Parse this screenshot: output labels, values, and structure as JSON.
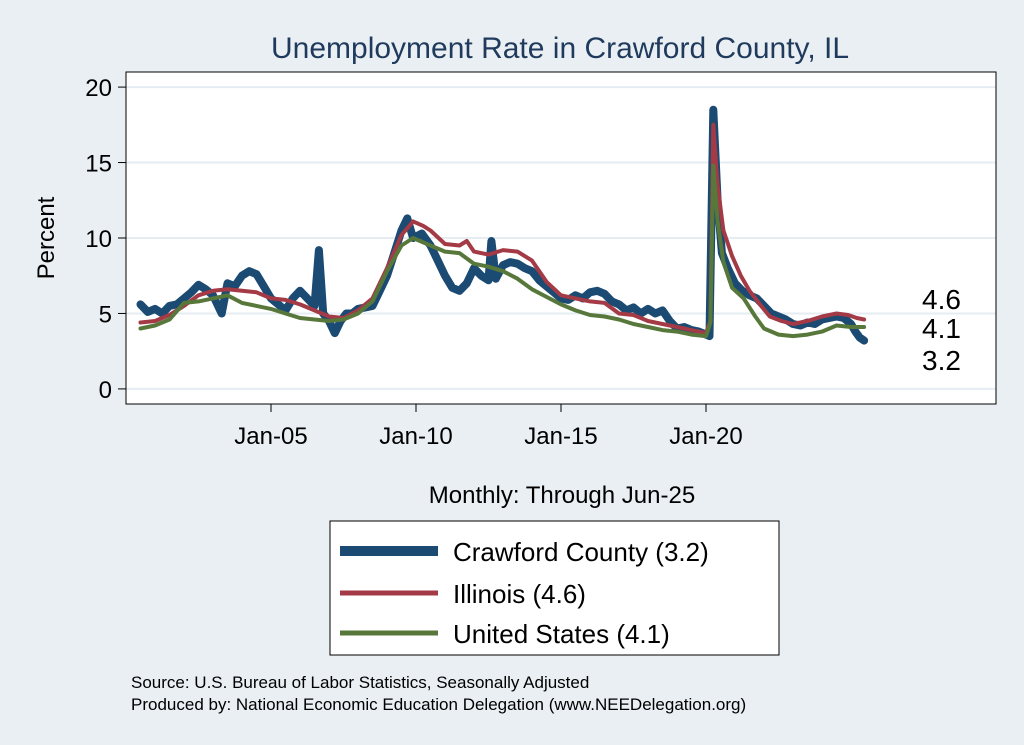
{
  "chart_data": {
    "type": "line",
    "title": "Unemployment Rate in Crawford  County, IL",
    "xlabel": "Monthly: Through Jun-25",
    "ylabel": "Percent",
    "xlim": [
      2000.0,
      2030.0
    ],
    "ylim": [
      -1.0,
      21.0
    ],
    "x_ticks": [
      {
        "value": 2005.0,
        "label": "Jan-05"
      },
      {
        "value": 2010.0,
        "label": "Jan-10"
      },
      {
        "value": 2015.0,
        "label": "Jan-15"
      },
      {
        "value": 2020.0,
        "label": "Jan-20"
      }
    ],
    "y_ticks": [
      0,
      5,
      10,
      15,
      20
    ],
    "grid": "horizontal",
    "end_labels": [
      "4.6",
      "4.1",
      "3.2"
    ],
    "series": [
      {
        "name": "Crawford  County (3.2)",
        "color": "#1b4a73",
        "width": 8,
        "points": [
          [
            2000.5,
            5.6
          ],
          [
            2000.75,
            5.1
          ],
          [
            2001.0,
            5.3
          ],
          [
            2001.25,
            5.0
          ],
          [
            2001.5,
            5.5
          ],
          [
            2001.75,
            5.6
          ],
          [
            2002.0,
            6.0
          ],
          [
            2002.25,
            6.4
          ],
          [
            2002.5,
            6.9
          ],
          [
            2002.75,
            6.6
          ],
          [
            2003.0,
            6.2
          ],
          [
            2003.3,
            5.0
          ],
          [
            2003.5,
            7.0
          ],
          [
            2003.75,
            6.8
          ],
          [
            2004.0,
            7.5
          ],
          [
            2004.25,
            7.8
          ],
          [
            2004.5,
            7.6
          ],
          [
            2004.75,
            6.8
          ],
          [
            2005.0,
            6.0
          ],
          [
            2005.25,
            5.6
          ],
          [
            2005.5,
            5.2
          ],
          [
            2005.75,
            6.0
          ],
          [
            2006.0,
            6.5
          ],
          [
            2006.25,
            6.0
          ],
          [
            2006.5,
            5.5
          ],
          [
            2006.65,
            9.2
          ],
          [
            2006.8,
            5.0
          ],
          [
            2007.0,
            4.5
          ],
          [
            2007.2,
            3.7
          ],
          [
            2007.4,
            4.5
          ],
          [
            2007.6,
            5.0
          ],
          [
            2007.8,
            5.0
          ],
          [
            2008.0,
            5.3
          ],
          [
            2008.25,
            5.4
          ],
          [
            2008.5,
            5.5
          ],
          [
            2008.75,
            6.5
          ],
          [
            2009.0,
            7.5
          ],
          [
            2009.25,
            9.0
          ],
          [
            2009.5,
            10.5
          ],
          [
            2009.7,
            11.3
          ],
          [
            2009.9,
            10.0
          ],
          [
            2010.2,
            10.3
          ],
          [
            2010.5,
            9.5
          ],
          [
            2010.75,
            8.5
          ],
          [
            2011.0,
            7.5
          ],
          [
            2011.25,
            6.7
          ],
          [
            2011.5,
            6.5
          ],
          [
            2011.75,
            7.0
          ],
          [
            2012.0,
            8.0
          ],
          [
            2012.25,
            7.5
          ],
          [
            2012.5,
            7.2
          ],
          [
            2012.6,
            9.8
          ],
          [
            2012.75,
            7.3
          ],
          [
            2013.0,
            8.2
          ],
          [
            2013.25,
            8.4
          ],
          [
            2013.5,
            8.3
          ],
          [
            2013.75,
            8.0
          ],
          [
            2014.0,
            7.8
          ],
          [
            2014.25,
            7.2
          ],
          [
            2014.5,
            6.8
          ],
          [
            2014.75,
            6.4
          ],
          [
            2015.0,
            6.0
          ],
          [
            2015.25,
            5.9
          ],
          [
            2015.5,
            6.2
          ],
          [
            2015.75,
            6.0
          ],
          [
            2016.0,
            6.4
          ],
          [
            2016.25,
            6.5
          ],
          [
            2016.5,
            6.3
          ],
          [
            2016.75,
            5.8
          ],
          [
            2017.0,
            5.6
          ],
          [
            2017.25,
            5.2
          ],
          [
            2017.5,
            5.4
          ],
          [
            2017.75,
            5.0
          ],
          [
            2018.0,
            5.3
          ],
          [
            2018.25,
            5.0
          ],
          [
            2018.5,
            5.2
          ],
          [
            2018.75,
            4.5
          ],
          [
            2019.0,
            4.0
          ],
          [
            2019.25,
            4.1
          ],
          [
            2019.5,
            3.9
          ],
          [
            2019.75,
            3.8
          ],
          [
            2020.0,
            3.6
          ],
          [
            2020.12,
            3.5
          ],
          [
            2020.25,
            18.5
          ],
          [
            2020.4,
            12.5
          ],
          [
            2020.55,
            9.0
          ],
          [
            2020.75,
            8.0
          ],
          [
            2021.0,
            7.0
          ],
          [
            2021.25,
            6.5
          ],
          [
            2021.5,
            6.2
          ],
          [
            2021.75,
            6.0
          ],
          [
            2022.0,
            5.5
          ],
          [
            2022.25,
            5.0
          ],
          [
            2022.5,
            4.8
          ],
          [
            2022.75,
            4.6
          ],
          [
            2023.0,
            4.3
          ],
          [
            2023.25,
            4.2
          ],
          [
            2023.5,
            4.4
          ],
          [
            2023.75,
            4.3
          ],
          [
            2024.0,
            4.6
          ],
          [
            2024.25,
            4.7
          ],
          [
            2024.5,
            4.8
          ],
          [
            2024.75,
            4.7
          ],
          [
            2025.0,
            4.3
          ],
          [
            2025.15,
            3.8
          ],
          [
            2025.3,
            3.4
          ],
          [
            2025.45,
            3.2
          ]
        ]
      },
      {
        "name": "Illinois (4.6)",
        "color": "#a33a45",
        "width": 4,
        "points": [
          [
            2000.5,
            4.4
          ],
          [
            2001.0,
            4.5
          ],
          [
            2001.5,
            4.9
          ],
          [
            2002.0,
            5.5
          ],
          [
            2002.5,
            6.2
          ],
          [
            2003.0,
            6.5
          ],
          [
            2003.5,
            6.6
          ],
          [
            2004.0,
            6.5
          ],
          [
            2004.5,
            6.4
          ],
          [
            2005.0,
            6.0
          ],
          [
            2005.5,
            5.9
          ],
          [
            2006.0,
            5.6
          ],
          [
            2006.5,
            5.2
          ],
          [
            2007.0,
            4.8
          ],
          [
            2007.5,
            4.7
          ],
          [
            2008.0,
            5.2
          ],
          [
            2008.5,
            6.0
          ],
          [
            2009.0,
            8.0
          ],
          [
            2009.5,
            10.2
          ],
          [
            2009.9,
            11.1
          ],
          [
            2010.25,
            10.8
          ],
          [
            2010.5,
            10.5
          ],
          [
            2011.0,
            9.6
          ],
          [
            2011.5,
            9.5
          ],
          [
            2011.75,
            9.8
          ],
          [
            2012.0,
            9.1
          ],
          [
            2012.5,
            8.9
          ],
          [
            2013.0,
            9.2
          ],
          [
            2013.5,
            9.1
          ],
          [
            2014.0,
            8.5
          ],
          [
            2014.5,
            7.1
          ],
          [
            2015.0,
            6.2
          ],
          [
            2015.5,
            6.0
          ],
          [
            2016.0,
            5.8
          ],
          [
            2016.5,
            5.7
          ],
          [
            2017.0,
            5.0
          ],
          [
            2017.5,
            4.9
          ],
          [
            2018.0,
            4.5
          ],
          [
            2018.5,
            4.3
          ],
          [
            2019.0,
            4.1
          ],
          [
            2019.5,
            3.9
          ],
          [
            2020.0,
            3.7
          ],
          [
            2020.15,
            4.5
          ],
          [
            2020.25,
            17.5
          ],
          [
            2020.4,
            13.5
          ],
          [
            2020.6,
            10.5
          ],
          [
            2020.9,
            8.8
          ],
          [
            2021.2,
            7.5
          ],
          [
            2021.5,
            6.5
          ],
          [
            2021.9,
            5.5
          ],
          [
            2022.2,
            4.8
          ],
          [
            2022.6,
            4.5
          ],
          [
            2023.0,
            4.3
          ],
          [
            2023.5,
            4.5
          ],
          [
            2024.0,
            4.8
          ],
          [
            2024.5,
            5.0
          ],
          [
            2024.9,
            4.9
          ],
          [
            2025.2,
            4.7
          ],
          [
            2025.45,
            4.6
          ]
        ]
      },
      {
        "name": "United States (4.1)",
        "color": "#57783a",
        "width": 4,
        "points": [
          [
            2000.5,
            4.0
          ],
          [
            2001.0,
            4.2
          ],
          [
            2001.5,
            4.6
          ],
          [
            2002.0,
            5.7
          ],
          [
            2002.5,
            5.8
          ],
          [
            2003.0,
            6.0
          ],
          [
            2003.5,
            6.2
          ],
          [
            2004.0,
            5.7
          ],
          [
            2004.5,
            5.5
          ],
          [
            2005.0,
            5.3
          ],
          [
            2005.5,
            5.0
          ],
          [
            2006.0,
            4.7
          ],
          [
            2006.5,
            4.6
          ],
          [
            2007.0,
            4.5
          ],
          [
            2007.5,
            4.6
          ],
          [
            2008.0,
            5.0
          ],
          [
            2008.5,
            5.8
          ],
          [
            2009.0,
            7.8
          ],
          [
            2009.5,
            9.5
          ],
          [
            2009.9,
            10.0
          ],
          [
            2010.5,
            9.5
          ],
          [
            2011.0,
            9.1
          ],
          [
            2011.5,
            9.0
          ],
          [
            2012.0,
            8.3
          ],
          [
            2012.5,
            8.1
          ],
          [
            2013.0,
            7.8
          ],
          [
            2013.5,
            7.3
          ],
          [
            2014.0,
            6.6
          ],
          [
            2014.5,
            6.1
          ],
          [
            2015.0,
            5.6
          ],
          [
            2015.5,
            5.2
          ],
          [
            2016.0,
            4.9
          ],
          [
            2016.5,
            4.8
          ],
          [
            2017.0,
            4.6
          ],
          [
            2017.5,
            4.3
          ],
          [
            2018.0,
            4.1
          ],
          [
            2018.5,
            3.9
          ],
          [
            2019.0,
            3.8
          ],
          [
            2019.5,
            3.6
          ],
          [
            2020.0,
            3.5
          ],
          [
            2020.15,
            4.4
          ],
          [
            2020.25,
            14.8
          ],
          [
            2020.4,
            11.1
          ],
          [
            2020.6,
            8.4
          ],
          [
            2020.9,
            6.7
          ],
          [
            2021.3,
            6.0
          ],
          [
            2021.7,
            4.8
          ],
          [
            2022.0,
            4.0
          ],
          [
            2022.5,
            3.6
          ],
          [
            2023.0,
            3.5
          ],
          [
            2023.5,
            3.6
          ],
          [
            2024.0,
            3.8
          ],
          [
            2024.5,
            4.2
          ],
          [
            2025.0,
            4.1
          ],
          [
            2025.45,
            4.1
          ]
        ]
      }
    ]
  },
  "source_text": "Source: U.S. Bureau of Labor Statistics, Seasonally Adjusted",
  "produced_text": "Produced by: National Economic Education Delegation (www.NEEDelegation.org)"
}
